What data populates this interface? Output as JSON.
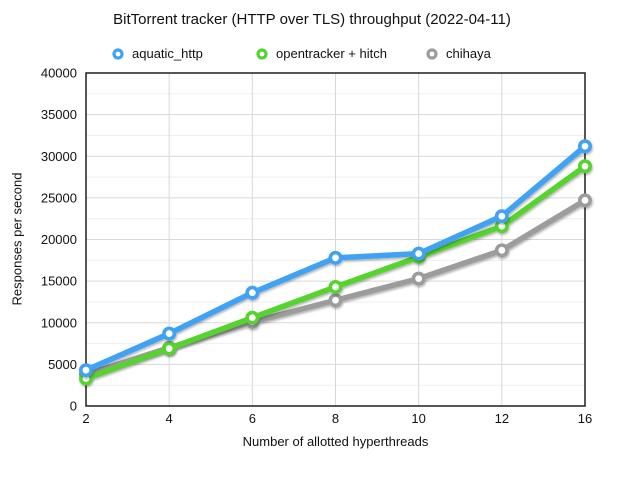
{
  "title": "BitTorrent tracker (HTTP over TLS) throughput (2022-04-11)",
  "chart_data": {
    "type": "line",
    "title": "BitTorrent tracker (HTTP over TLS) throughput (2022-04-11)",
    "x": [
      2,
      4,
      6,
      8,
      10,
      12,
      16
    ],
    "x_scale": "categorical-even-spacing",
    "xlabel": "Number of allotted hyperthreads",
    "ylabel": "Responses per second",
    "ylim": [
      0,
      40000
    ],
    "y_major_step": 5000,
    "y_minor_step": 2500,
    "grid": true,
    "legend_position": "top",
    "series": [
      {
        "name": "aquatic_http",
        "color": "#3FA2F4",
        "values": [
          4300,
          8700,
          13600,
          17800,
          18300,
          22800,
          31200
        ]
      },
      {
        "name": "opentracker + hitch",
        "color": "#56D32F",
        "values": [
          3300,
          6900,
          10600,
          14300,
          17900,
          21600,
          28800
        ]
      },
      {
        "name": "chihaya",
        "color": "#9C9C9C",
        "values": [
          3800,
          7000,
          10100,
          12700,
          15300,
          18700,
          24700
        ]
      }
    ],
    "marker_style": "open-circle",
    "border_color": "#1f1f1f",
    "major_grid_color": "#d8d8d8",
    "minor_grid_color": "#efefef"
  }
}
